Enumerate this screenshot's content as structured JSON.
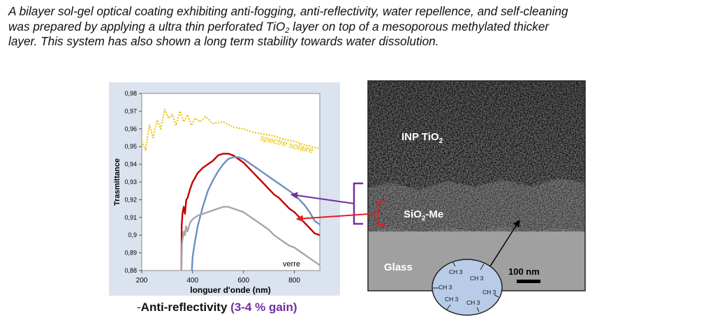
{
  "abstract": {
    "line1": "A bilayer sol-gel optical coating exhibiting anti-fogging, anti-reflectivity, water repellence, and self-cleaning",
    "line2_before": "was prepared by applying a ultra thin perforated TiO",
    "line2_sub": "2",
    "line2_after": " layer on top of a mesoporous methylated thicker",
    "line3": "layer. This system has also shown a long term stability towards water dissolution."
  },
  "caption": {
    "dash": "-",
    "label": "Anti-reflectivity",
    "gain": "(3-4 % gain)"
  },
  "colors": {
    "chart_background": "#dbe3ef",
    "solar": "#e8c000",
    "coated_red": "#c00000",
    "coated_blue": "#6b8fc2",
    "glass_grey": "#a6a6a6",
    "purple_bracket": "#7030a0",
    "red_bracket": "#e02020",
    "molecule_fill": "#b8cbe8"
  },
  "chart_data": {
    "type": "line",
    "xlabel": "longuer d'onde (nm)",
    "ylabel": "Trasmittance",
    "xlim": [
      200,
      900
    ],
    "ylim": [
      0.88,
      0.98
    ],
    "x_ticks": [
      "200",
      "400",
      "600",
      "800"
    ],
    "x_tick_values": [
      200,
      400,
      600,
      800
    ],
    "y_ticks": [
      "0,88",
      "0,89",
      "0,9",
      "0,91",
      "0,92",
      "0,93",
      "0,94",
      "0,95",
      "0,96",
      "0,97",
      "0,98"
    ],
    "y_tick_values": [
      0.88,
      0.89,
      0.9,
      0.91,
      0.92,
      0.93,
      0.94,
      0.95,
      0.96,
      0.97,
      0.98
    ],
    "grid": false,
    "series": [
      {
        "name": "spectre solaire",
        "color": "#e8c000",
        "style": "dotted",
        "x": [
          200,
          215,
          230,
          245,
          260,
          275,
          290,
          305,
          320,
          335,
          350,
          365,
          380,
          395,
          410,
          430,
          450,
          480,
          520,
          560,
          600,
          640,
          680,
          720,
          760,
          800,
          840,
          880,
          900
        ],
        "y": [
          0.953,
          0.948,
          0.962,
          0.955,
          0.965,
          0.96,
          0.971,
          0.966,
          0.968,
          0.962,
          0.97,
          0.964,
          0.968,
          0.962,
          0.966,
          0.964,
          0.967,
          0.963,
          0.964,
          0.961,
          0.96,
          0.958,
          0.957,
          0.956,
          0.954,
          0.953,
          0.951,
          0.9495,
          0.949
        ]
      },
      {
        "name": "",
        "color": "#c00000",
        "style": "solid",
        "x": [
          356,
          357,
          360,
          365,
          370,
          375,
          380,
          390,
          400,
          420,
          440,
          460,
          480,
          500,
          520,
          540,
          560,
          580,
          600,
          620,
          640,
          660,
          680,
          700,
          720,
          740,
          760,
          780,
          800,
          820,
          840,
          860,
          880,
          900
        ],
        "y": [
          0.88,
          0.905,
          0.912,
          0.916,
          0.912,
          0.92,
          0.921,
          0.926,
          0.93,
          0.935,
          0.938,
          0.94,
          0.942,
          0.945,
          0.946,
          0.946,
          0.945,
          0.943,
          0.941,
          0.938,
          0.935,
          0.932,
          0.929,
          0.926,
          0.923,
          0.921,
          0.918,
          0.915,
          0.913,
          0.91,
          0.907,
          0.904,
          0.901,
          0.9
        ]
      },
      {
        "name": "",
        "color": "#6b8fc2",
        "style": "solid",
        "x": [
          397,
          400,
          410,
          420,
          440,
          460,
          480,
          500,
          520,
          540,
          560,
          580,
          600,
          620,
          640,
          660,
          680,
          700,
          720,
          740,
          760,
          780,
          800,
          820,
          840,
          860,
          880,
          900
        ],
        "y": [
          0.88,
          0.888,
          0.897,
          0.905,
          0.916,
          0.925,
          0.931,
          0.936,
          0.94,
          0.943,
          0.944,
          0.944,
          0.943,
          0.941,
          0.939,
          0.937,
          0.935,
          0.933,
          0.931,
          0.929,
          0.927,
          0.925,
          0.923,
          0.92,
          0.917,
          0.913,
          0.908,
          0.906
        ]
      },
      {
        "name": "verre",
        "color": "#a6a6a6",
        "style": "solid",
        "x": [
          356,
          358,
          362,
          366,
          370,
          374,
          380,
          390,
          400,
          420,
          440,
          460,
          480,
          500,
          520,
          540,
          560,
          580,
          600,
          620,
          640,
          660,
          680,
          700,
          720,
          740,
          760,
          780,
          800,
          820,
          840,
          860,
          880,
          900
        ],
        "y": [
          0.88,
          0.895,
          0.899,
          0.902,
          0.9,
          0.905,
          0.902,
          0.907,
          0.909,
          0.911,
          0.912,
          0.913,
          0.914,
          0.915,
          0.916,
          0.916,
          0.915,
          0.914,
          0.913,
          0.911,
          0.909,
          0.907,
          0.905,
          0.903,
          0.9,
          0.898,
          0.896,
          0.894,
          0.893,
          0.891,
          0.889,
          0.887,
          0.885,
          0.883
        ]
      }
    ],
    "annotations": [
      "spectre solaire",
      "verre"
    ]
  },
  "micrograph": {
    "top_layer_label": "INP TiO",
    "top_layer_sub": "2",
    "middle_layer_label": "SiO",
    "middle_layer_sub": "2",
    "middle_layer_suffix": "-Me",
    "substrate_label": "Glass",
    "scale_bar_label": "100 nm"
  },
  "molecule": {
    "groups": [
      "CH 3",
      "CH 3",
      "CH 3",
      "CH 3",
      "CH 3",
      "CH 3"
    ]
  }
}
